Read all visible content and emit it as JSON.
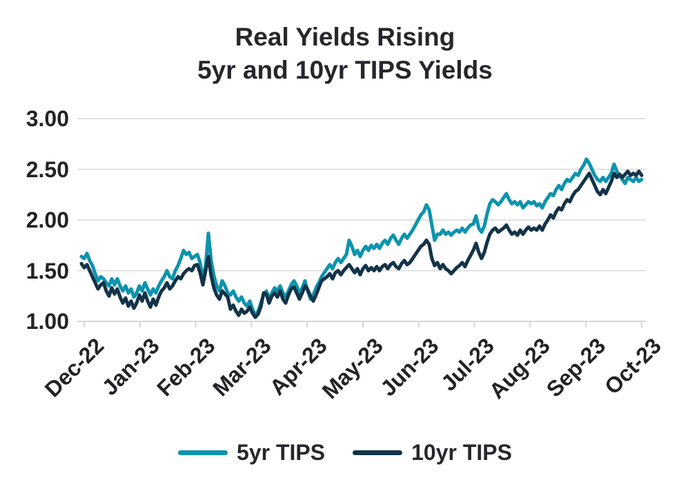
{
  "title": {
    "line1": "Real Yields Rising",
    "line2": "5yr and 10yr TIPS Yields"
  },
  "colors": {
    "text": "#26272c",
    "axis_text": "#222327",
    "grid": "#d9d9d9",
    "axis_line": "#d6d6d6",
    "series_5yr": "#0d93ae",
    "series_10yr": "#133349",
    "background": "#ffffff"
  },
  "legend": {
    "items": [
      {
        "label": "5yr TIPS",
        "color": "#0d93ae"
      },
      {
        "label": "10yr TIPS",
        "color": "#133349"
      }
    ]
  },
  "chart_data": {
    "type": "line",
    "title": "Real Yields Rising",
    "subtitle": "5yr and 10yr TIPS Yields",
    "xlabel": "",
    "ylabel": "",
    "ylim": [
      1.0,
      3.0
    ],
    "grid": "horizontal",
    "legend_position": "bottom",
    "y_ticks": [
      3.0,
      2.5,
      2.0,
      1.5,
      1.0
    ],
    "y_tick_labels": [
      "3.00",
      "2.50",
      "2.00",
      "1.50",
      "1.00"
    ],
    "x_tick_labels": [
      "Dec-22",
      "Jan-23",
      "Feb-23",
      "Mar-23",
      "Apr-23",
      "May-23",
      "Jun-23",
      "Jul-23",
      "Aug-23",
      "Sep-23",
      "Oct-23"
    ],
    "x_note": "daily observations; x given as fraction of axis from Dec-22 tick (0.0) to Oct-23 tick (1.0)",
    "x_frac_start": -0.00495,
    "x_frac_step": 0.00495,
    "series": [
      {
        "name": "5yr TIPS",
        "color": "#0d93ae",
        "values": [
          1.64,
          1.62,
          1.67,
          1.6,
          1.55,
          1.47,
          1.4,
          1.44,
          1.42,
          1.38,
          1.35,
          1.42,
          1.36,
          1.42,
          1.35,
          1.3,
          1.35,
          1.28,
          1.32,
          1.24,
          1.28,
          1.35,
          1.3,
          1.38,
          1.32,
          1.26,
          1.32,
          1.28,
          1.35,
          1.4,
          1.44,
          1.5,
          1.44,
          1.42,
          1.5,
          1.55,
          1.62,
          1.7,
          1.66,
          1.68,
          1.62,
          1.64,
          1.66,
          1.58,
          1.42,
          1.55,
          1.87,
          1.6,
          1.45,
          1.35,
          1.3,
          1.4,
          1.35,
          1.28,
          1.26,
          1.3,
          1.24,
          1.2,
          1.24,
          1.18,
          1.15,
          1.2,
          1.12,
          1.06,
          1.1,
          1.18,
          1.26,
          1.3,
          1.22,
          1.28,
          1.33,
          1.3,
          1.35,
          1.28,
          1.24,
          1.3,
          1.36,
          1.4,
          1.35,
          1.28,
          1.33,
          1.4,
          1.3,
          1.22,
          1.26,
          1.33,
          1.38,
          1.44,
          1.48,
          1.52,
          1.56,
          1.52,
          1.58,
          1.62,
          1.58,
          1.62,
          1.66,
          1.8,
          1.74,
          1.66,
          1.7,
          1.64,
          1.7,
          1.74,
          1.7,
          1.75,
          1.72,
          1.76,
          1.72,
          1.77,
          1.8,
          1.76,
          1.82,
          1.85,
          1.8,
          1.76,
          1.82,
          1.86,
          1.82,
          1.86,
          1.9,
          1.95,
          2.0,
          2.05,
          2.08,
          2.15,
          2.1,
          1.95,
          1.8,
          1.86,
          1.86,
          1.9,
          1.86,
          1.88,
          1.85,
          1.88,
          1.9,
          1.88,
          1.92,
          1.88,
          1.92,
          1.95,
          1.96,
          2.04,
          1.92,
          1.88,
          1.94,
          2.06,
          2.16,
          2.2,
          2.18,
          2.15,
          2.18,
          2.22,
          2.26,
          2.2,
          2.16,
          2.18,
          2.15,
          2.18,
          2.12,
          2.15,
          2.18,
          2.16,
          2.18,
          2.14,
          2.16,
          2.12,
          2.18,
          2.22,
          2.26,
          2.24,
          2.3,
          2.34,
          2.3,
          2.36,
          2.4,
          2.38,
          2.42,
          2.46,
          2.44,
          2.5,
          2.54,
          2.6,
          2.56,
          2.5,
          2.44,
          2.4,
          2.38,
          2.42,
          2.38,
          2.42,
          2.46,
          2.55,
          2.48,
          2.44,
          2.4,
          2.36,
          2.42,
          2.4,
          2.38,
          2.42,
          2.38,
          2.4
        ]
      },
      {
        "name": "10yr TIPS",
        "color": "#133349",
        "values": [
          1.57,
          1.53,
          1.56,
          1.5,
          1.44,
          1.38,
          1.32,
          1.36,
          1.38,
          1.3,
          1.25,
          1.33,
          1.27,
          1.32,
          1.24,
          1.18,
          1.23,
          1.15,
          1.2,
          1.13,
          1.18,
          1.26,
          1.2,
          1.28,
          1.2,
          1.14,
          1.22,
          1.16,
          1.24,
          1.3,
          1.33,
          1.38,
          1.32,
          1.35,
          1.4,
          1.44,
          1.42,
          1.47,
          1.5,
          1.52,
          1.5,
          1.55,
          1.56,
          1.48,
          1.36,
          1.5,
          1.64,
          1.45,
          1.33,
          1.26,
          1.22,
          1.3,
          1.27,
          1.24,
          1.12,
          1.16,
          1.1,
          1.06,
          1.12,
          1.08,
          1.1,
          1.14,
          1.08,
          1.04,
          1.07,
          1.14,
          1.28,
          1.27,
          1.18,
          1.25,
          1.28,
          1.24,
          1.3,
          1.22,
          1.18,
          1.26,
          1.32,
          1.34,
          1.28,
          1.22,
          1.28,
          1.35,
          1.31,
          1.25,
          1.2,
          1.26,
          1.33,
          1.4,
          1.42,
          1.44,
          1.47,
          1.42,
          1.48,
          1.5,
          1.46,
          1.5,
          1.53,
          1.56,
          1.52,
          1.48,
          1.52,
          1.46,
          1.52,
          1.55,
          1.5,
          1.53,
          1.5,
          1.54,
          1.5,
          1.54,
          1.56,
          1.52,
          1.56,
          1.58,
          1.54,
          1.52,
          1.57,
          1.6,
          1.56,
          1.58,
          1.62,
          1.66,
          1.7,
          1.74,
          1.76,
          1.8,
          1.76,
          1.62,
          1.55,
          1.58,
          1.52,
          1.56,
          1.52,
          1.5,
          1.47,
          1.5,
          1.53,
          1.55,
          1.58,
          1.54,
          1.6,
          1.65,
          1.7,
          1.77,
          1.68,
          1.62,
          1.68,
          1.78,
          1.86,
          1.9,
          1.92,
          1.88,
          1.9,
          1.92,
          1.95,
          1.9,
          1.86,
          1.88,
          1.85,
          1.9,
          1.86,
          1.9,
          1.93,
          1.9,
          1.92,
          1.9,
          1.94,
          1.9,
          1.96,
          2.0,
          2.05,
          2.02,
          2.08,
          2.12,
          2.1,
          2.16,
          2.2,
          2.18,
          2.24,
          2.28,
          2.3,
          2.34,
          2.38,
          2.42,
          2.46,
          2.4,
          2.34,
          2.28,
          2.25,
          2.3,
          2.26,
          2.32,
          2.38,
          2.46,
          2.42,
          2.45,
          2.42,
          2.45,
          2.48,
          2.44,
          2.46,
          2.44,
          2.48,
          2.44
        ]
      }
    ]
  }
}
